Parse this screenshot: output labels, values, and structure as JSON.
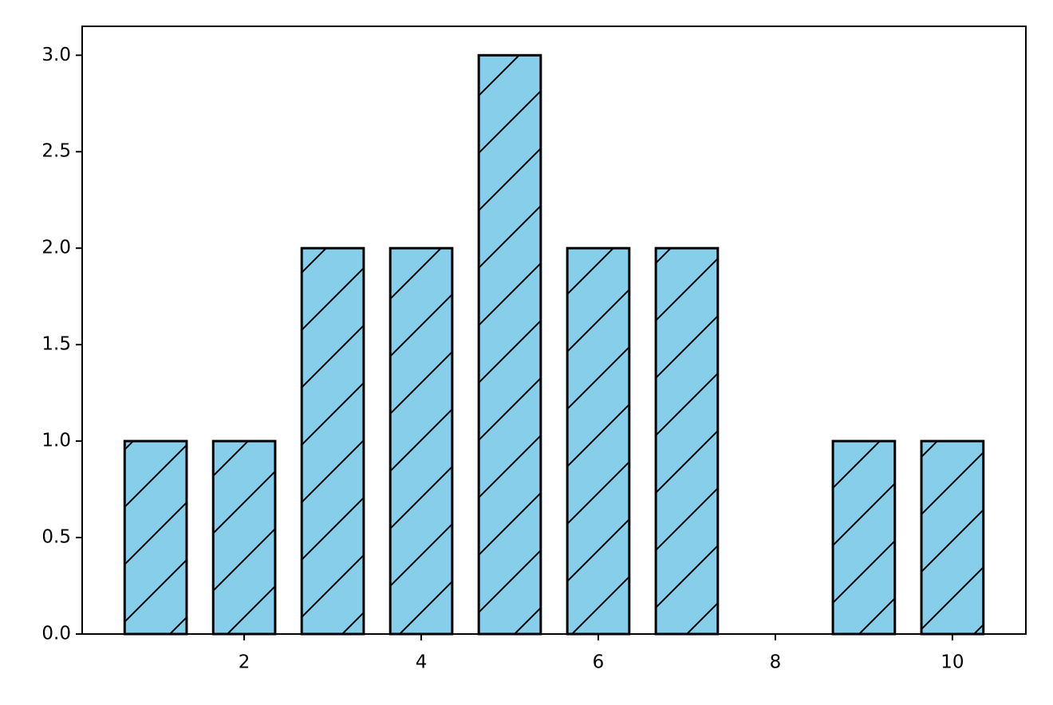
{
  "chart_data": {
    "type": "bar",
    "x": [
      1,
      2,
      3,
      4,
      5,
      6,
      7,
      8,
      9,
      10
    ],
    "values": [
      1,
      1,
      2,
      2,
      3,
      2,
      2,
      0,
      1,
      1
    ],
    "color": "#87ceeb",
    "edgecolor": "#000000",
    "hatch": "/",
    "xlim": [
      0.17,
      10.83
    ],
    "xticks": [
      2,
      4,
      6,
      8,
      10
    ],
    "ylim": [
      0,
      3.15
    ],
    "yticks": [
      {
        "value": 0,
        "label": "0.0"
      },
      0.5,
      {
        "value": 1,
        "label": "1.0"
      },
      1.5,
      {
        "value": 2,
        "label": "2.0"
      },
      2.5,
      {
        "value": 3,
        "label": "3.0"
      }
    ],
    "grid": false
  }
}
